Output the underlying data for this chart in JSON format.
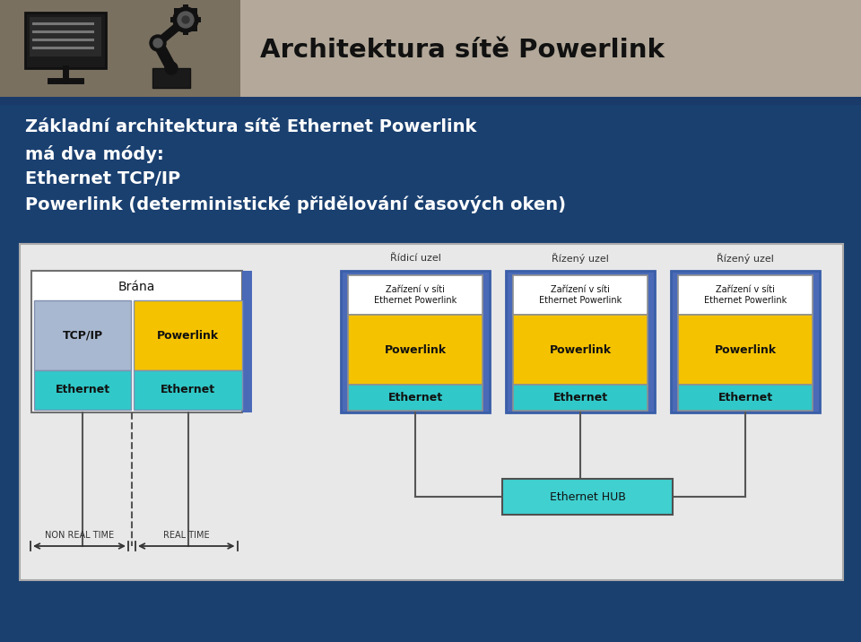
{
  "title": "Architektura sítě Powerlink",
  "header_bg": "#b3a899",
  "header_icon_bg": "#7a7060",
  "body_bg": "#1a4070",
  "diagram_bg": "#e8e8e8",
  "text_line1": "Základní architektura sítě Ethernet Powerlink",
  "text_line2": "má dva módy:",
  "text_line3": "Ethernet TCP/IP",
  "text_line4": "Powerlink (deterministické přidělování časových oken)",
  "color_yellow": "#f5c200",
  "color_cyan": "#30c8c8",
  "color_lightblue": "#a8b8d0",
  "color_blue_border": "#3a5ea8",
  "color_blue_fill": "#4a6ab8",
  "color_white": "#ffffff",
  "color_dark": "#202020",
  "blue_stripe_color": "#1a3a6a",
  "hub_color": "#40d0d0",
  "line_color": "#555555"
}
